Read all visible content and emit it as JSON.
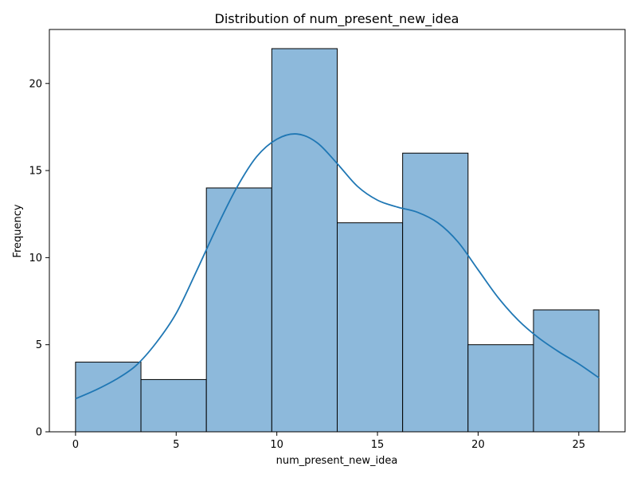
{
  "chart_data": {
    "type": "bar",
    "title": "Distribution of num_present_new_idea",
    "xlabel": "num_present_new_idea",
    "ylabel": "Frequency",
    "xlim": [
      -1.3,
      27.3
    ],
    "ylim": [
      0,
      23.1
    ],
    "xticks": [
      0,
      5,
      10,
      15,
      20,
      25
    ],
    "yticks": [
      0,
      5,
      10,
      15,
      20
    ],
    "bins": [
      {
        "x0": 0.0,
        "x1": 3.25,
        "count": 4
      },
      {
        "x0": 3.25,
        "x1": 6.5,
        "count": 3
      },
      {
        "x0": 6.5,
        "x1": 9.75,
        "count": 14
      },
      {
        "x0": 9.75,
        "x1": 13.0,
        "count": 22
      },
      {
        "x0": 13.0,
        "x1": 16.25,
        "count": 12
      },
      {
        "x0": 16.25,
        "x1": 19.5,
        "count": 16
      },
      {
        "x0": 19.5,
        "x1": 22.75,
        "count": 5
      },
      {
        "x0": 22.75,
        "x1": 26.0,
        "count": 7
      }
    ],
    "kde": {
      "x": [
        0,
        1,
        2,
        3,
        4,
        5,
        6,
        7,
        8,
        9,
        10,
        11,
        12,
        13,
        14,
        15,
        16,
        17,
        18,
        19,
        20,
        21,
        22,
        23,
        24,
        25,
        26
      ],
      "y": [
        1.9,
        2.4,
        3.0,
        3.8,
        5.1,
        6.8,
        9.2,
        11.7,
        14.0,
        15.8,
        16.8,
        17.1,
        16.6,
        15.4,
        14.1,
        13.3,
        12.9,
        12.6,
        12.0,
        10.9,
        9.3,
        7.7,
        6.4,
        5.4,
        4.6,
        3.9,
        3.1
      ]
    },
    "bar_color": "#8db9db",
    "bar_edge_color": "#000000",
    "line_color": "#1f77b4",
    "grid": false,
    "legend": false
  }
}
